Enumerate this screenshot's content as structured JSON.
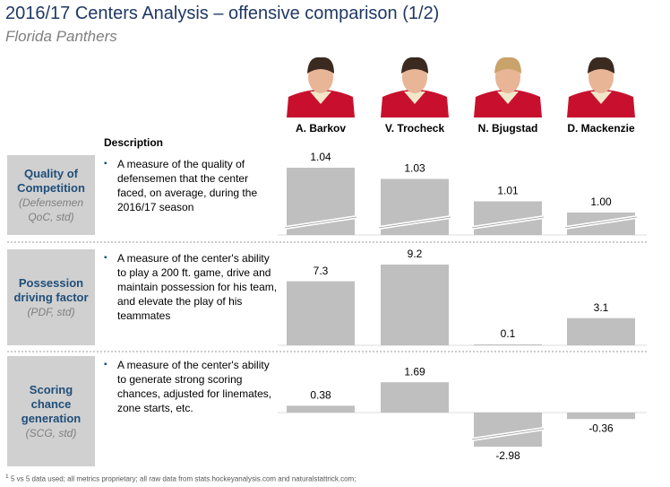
{
  "title": "2016/17 Centers Analysis – offensive comparison (1/2)",
  "subtitle": "Florida Panthers",
  "players": [
    "A. Barkov",
    "V. Trocheck",
    "N. Bjugstad",
    "D. Mackenzie"
  ],
  "description_header": "Description",
  "chart_data": [
    {
      "type": "bar",
      "title": "Quality of Competition",
      "subtitle": "(Defensemen QoC, std)",
      "description": "A measure of the quality of defensemen that the center faced, on average, during the 2016/17 season",
      "values": [
        1.04,
        1.03,
        1.01,
        1.0
      ],
      "value_labels": [
        "1.04",
        "1.03",
        "1.01",
        "1.00"
      ],
      "color": "#bfbfbf",
      "axis_break": true
    },
    {
      "type": "bar",
      "title": "Possession driving factor",
      "subtitle": "(PDF, std)",
      "description": "A measure of the center's ability to play a 200 ft. game, drive and maintain possession for his team, and elevate the play of his teammates",
      "values": [
        7.3,
        9.2,
        0.1,
        3.1
      ],
      "color": "#bfbfbf",
      "axis_break": false
    },
    {
      "type": "bar",
      "title": "Scoring chance generation",
      "subtitle": "(SCG, std)",
      "description": "A measure of the center's ability to generate strong scoring chances, adjusted for linemates, zone starts, etc.",
      "values": [
        0.38,
        1.69,
        -2.98,
        -0.36
      ],
      "color": "#bfbfbf",
      "axis_break": true
    }
  ],
  "footnote_marker": "1",
  "footnote": "5 vs 5 data used; all metrics proprietary; all raw data from stats.hockeyanalysis.com and naturalstattrick.com;"
}
